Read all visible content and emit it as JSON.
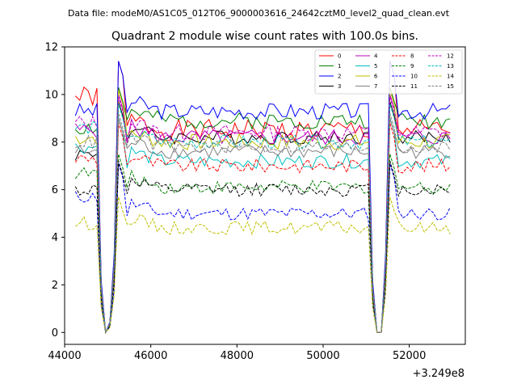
{
  "figure": {
    "suptitle": "Data file: modeM0/AS1C05_012T06_9000003616_24642cztM0_level2_quad_clean.evt"
  },
  "chart_data": {
    "type": "line",
    "title": "Quadrant 2 module wise count rates with 100.0s bins.",
    "xlabel": "",
    "ylabel": "",
    "x_offset_label": "+3.249e8",
    "xlim": [
      44000,
      53300
    ],
    "ylim": [
      -0.5,
      12
    ],
    "xticks": [
      44000,
      46000,
      48000,
      50000,
      52000
    ],
    "xtick_labels": [
      "44000",
      "46000",
      "48000",
      "50000",
      "52000"
    ],
    "yticks": [
      0,
      2,
      4,
      6,
      8,
      10,
      12
    ],
    "ytick_labels": [
      "0",
      "2",
      "4",
      "6",
      "8",
      "10",
      "12"
    ],
    "grid": false,
    "legend_position": "top-right",
    "x_start": 44250,
    "bin": 100,
    "gap_bins": [
      6,
      7,
      8,
      9,
      69,
      70,
      71,
      72
    ],
    "gap_values": [
      2.0,
      0.0,
      0.4,
      3.0,
      2.0,
      0.0,
      0.0,
      3.0
    ],
    "series": [
      {
        "name": "0",
        "color": "#ff0000",
        "dash": "solid",
        "level": 8.5,
        "pre": 9.9,
        "peak": 11.4,
        "amp": 0.45,
        "seed": 1
      },
      {
        "name": "1",
        "color": "#008000",
        "dash": "solid",
        "level": 8.9,
        "pre": 8.6,
        "peak": 10.3,
        "amp": 0.35,
        "seed": 2
      },
      {
        "name": "2",
        "color": "#0000ff",
        "dash": "solid",
        "level": 9.3,
        "pre": 9.3,
        "peak": 11.4,
        "amp": 0.35,
        "seed": 3
      },
      {
        "name": "3",
        "color": "#000000",
        "dash": "solid",
        "level": 8.2,
        "pre": 7.5,
        "peak": 9.7,
        "amp": 0.3,
        "seed": 4
      },
      {
        "name": "4",
        "color": "#bf00bf",
        "dash": "solid",
        "level": 8.2,
        "pre": 8.5,
        "peak": 10.0,
        "amp": 0.35,
        "seed": 5
      },
      {
        "name": "5",
        "color": "#00bfbf",
        "dash": "solid",
        "level": 7.2,
        "pre": 7.8,
        "peak": 9.0,
        "amp": 0.3,
        "seed": 6
      },
      {
        "name": "6",
        "color": "#bfbf00",
        "dash": "solid",
        "level": 8.0,
        "pre": 8.2,
        "peak": 10.2,
        "amp": 0.35,
        "seed": 7
      },
      {
        "name": "7",
        "color": "#808080",
        "dash": "solid",
        "level": 7.6,
        "pre": 7.6,
        "peak": 9.0,
        "amp": 0.3,
        "seed": 8
      },
      {
        "name": "8",
        "color": "#ff0000",
        "dash": "dashed",
        "level": 7.0,
        "pre": 7.3,
        "peak": 8.8,
        "amp": 0.3,
        "seed": 9
      },
      {
        "name": "9",
        "color": "#008000",
        "dash": "dashed",
        "level": 6.1,
        "pre": 6.7,
        "peak": 7.5,
        "amp": 0.28,
        "seed": 10
      },
      {
        "name": "10",
        "color": "#0000ff",
        "dash": "dashed",
        "level": 5.0,
        "pre": 5.7,
        "peak": 7.1,
        "amp": 0.28,
        "seed": 11
      },
      {
        "name": "11",
        "color": "#000000",
        "dash": "dashed",
        "level": 6.0,
        "pre": 6.0,
        "peak": 7.2,
        "amp": 0.28,
        "seed": 12
      },
      {
        "name": "12",
        "color": "#bf00bf",
        "dash": "dashed",
        "level": 8.4,
        "pre": 8.8,
        "peak": 9.9,
        "amp": 0.35,
        "seed": 13
      },
      {
        "name": "13",
        "color": "#00bfbf",
        "dash": "dashed",
        "level": 8.0,
        "pre": 8.6,
        "peak": 9.6,
        "amp": 0.3,
        "seed": 14
      },
      {
        "name": "14",
        "color": "#bfbf00",
        "dash": "dashed",
        "level": 4.4,
        "pre": 4.6,
        "peak": 5.7,
        "amp": 0.28,
        "seed": 15
      },
      {
        "name": "15",
        "color": "#808080",
        "dash": "dashed",
        "level": 7.8,
        "pre": 8.0,
        "peak": 9.2,
        "amp": 0.3,
        "seed": 16
      }
    ]
  }
}
